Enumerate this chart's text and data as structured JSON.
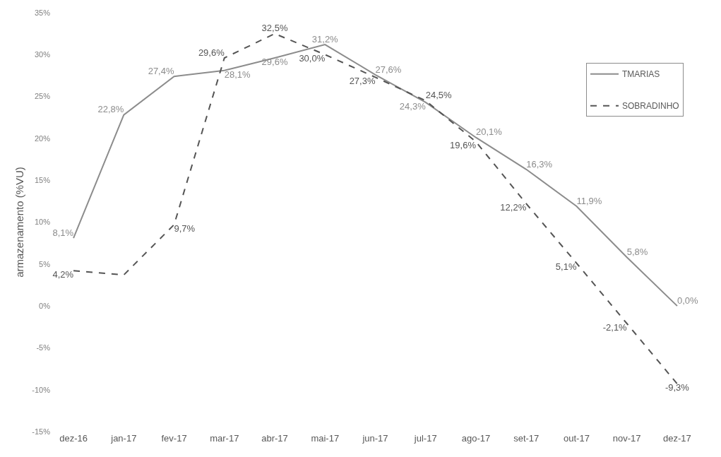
{
  "chart_data": {
    "type": "line",
    "ylabel": "armazenamento (%VU)",
    "categories": [
      "dez-16",
      "jan-17",
      "fev-17",
      "mar-17",
      "abr-17",
      "mai-17",
      "jun-17",
      "jul-17",
      "ago-17",
      "set-17",
      "out-17",
      "nov-17",
      "dez-17"
    ],
    "series": [
      {
        "name": "TMARIAS",
        "color": "#8c8c8c",
        "line_style": "solid",
        "values": [
          8.1,
          22.8,
          27.4,
          28.1,
          29.6,
          31.2,
          27.6,
          24.3,
          20.1,
          16.3,
          11.9,
          5.8,
          0.0
        ],
        "value_labels": [
          "8,1%",
          "22,8%",
          "27,4%",
          "28,1%",
          "29,6%",
          "31,2%",
          "27,6%",
          "24,3%",
          "20,1%",
          "16,3%",
          "11,9%",
          "5,8%",
          "0,0%"
        ]
      },
      {
        "name": "SOBRADINHO",
        "color": "#555555",
        "line_style": "dashed",
        "values": [
          4.2,
          3.7,
          9.7,
          29.6,
          32.5,
          30.0,
          27.3,
          24.5,
          19.6,
          12.2,
          5.1,
          -2.1,
          -9.3
        ],
        "value_labels": [
          "4,2%",
          null,
          "9,7%",
          "29,6%",
          "32,5%",
          "30,0%",
          "27,3%",
          "24,5%",
          "19,6%",
          "12,2%",
          "5,1%",
          "-2,1%",
          "-9,3%"
        ]
      }
    ],
    "ylim": [
      -15,
      35
    ],
    "yticks": [
      {
        "value": -15,
        "label": "-15%"
      },
      {
        "value": -10,
        "label": "-10%"
      },
      {
        "value": -5,
        "label": "-5%"
      },
      {
        "value": 0,
        "label": "0%"
      },
      {
        "value": 5,
        "label": "5%"
      },
      {
        "value": 10,
        "label": "10%"
      },
      {
        "value": 15,
        "label": "15%"
      },
      {
        "value": 20,
        "label": "20%"
      },
      {
        "value": 25,
        "label": "25%"
      },
      {
        "value": 30,
        "label": "30%"
      },
      {
        "value": 35,
        "label": "35%"
      }
    ],
    "legend": "top right"
  }
}
